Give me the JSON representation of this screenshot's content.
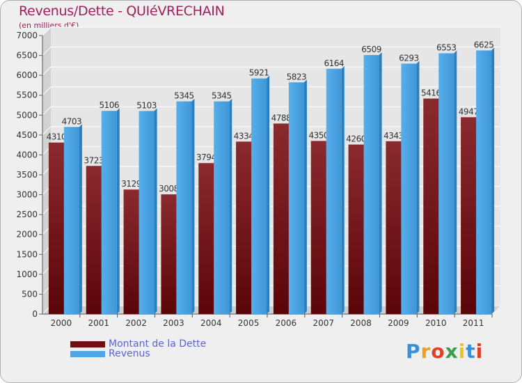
{
  "header": {
    "title": "Revenus/Dette - QUIéVRECHAIN",
    "subtitle": "(en milliers d'€)"
  },
  "legend": {
    "items": [
      {
        "label": "Montant de la Dette",
        "color": "#6e0f14"
      },
      {
        "label": "Revenus",
        "color": "#4ea6e6"
      }
    ]
  },
  "brand": {
    "text": "Proxiti"
  },
  "chart_data": {
    "type": "bar",
    "title": "Revenus/Dette - QUIéVRECHAIN",
    "subtitle": "(en milliers d'€)",
    "categories": [
      "2000",
      "2001",
      "2002",
      "2003",
      "2004",
      "2005",
      "2006",
      "2007",
      "2008",
      "2009",
      "2010",
      "2011"
    ],
    "series": [
      {
        "name": "Montant de la Dette",
        "color": "#6e0f14",
        "values": [
          4310,
          3723,
          3129,
          3008,
          3794,
          4334,
          4788,
          4350,
          4260,
          4343,
          5416,
          4947
        ],
        "labels": [
          "4310",
          "3723",
          "3129",
          "3008",
          "3794",
          "4334",
          "4788",
          "4350",
          "4260",
          "4343",
          "5416",
          "4947"
        ]
      },
      {
        "name": "Revenus",
        "color": "#4ea6e6",
        "values": [
          4703,
          5106,
          5103,
          5345,
          5345,
          5921,
          5823,
          6164,
          6509,
          6293,
          6553,
          6625
        ],
        "labels": [
          "4703",
          "5106",
          "5103",
          "5345",
          "5345",
          "5921",
          "5823",
          "6164",
          "6509",
          "6293",
          "6553",
          "6625"
        ]
      }
    ],
    "ylim": [
      0,
      7000
    ],
    "yticks": [
      0,
      500,
      1000,
      1500,
      2000,
      2500,
      3000,
      3500,
      4000,
      4500,
      5000,
      5500,
      6000,
      6500,
      7000
    ],
    "ytick_labels": [
      "0",
      "500",
      "1000",
      "1500",
      "2000",
      "2500",
      "3000",
      "3500",
      "4000",
      "4500",
      "5000",
      "5500",
      "6000",
      "6500",
      "7000"
    ],
    "grid": true,
    "legend_position": "bottom-left"
  }
}
